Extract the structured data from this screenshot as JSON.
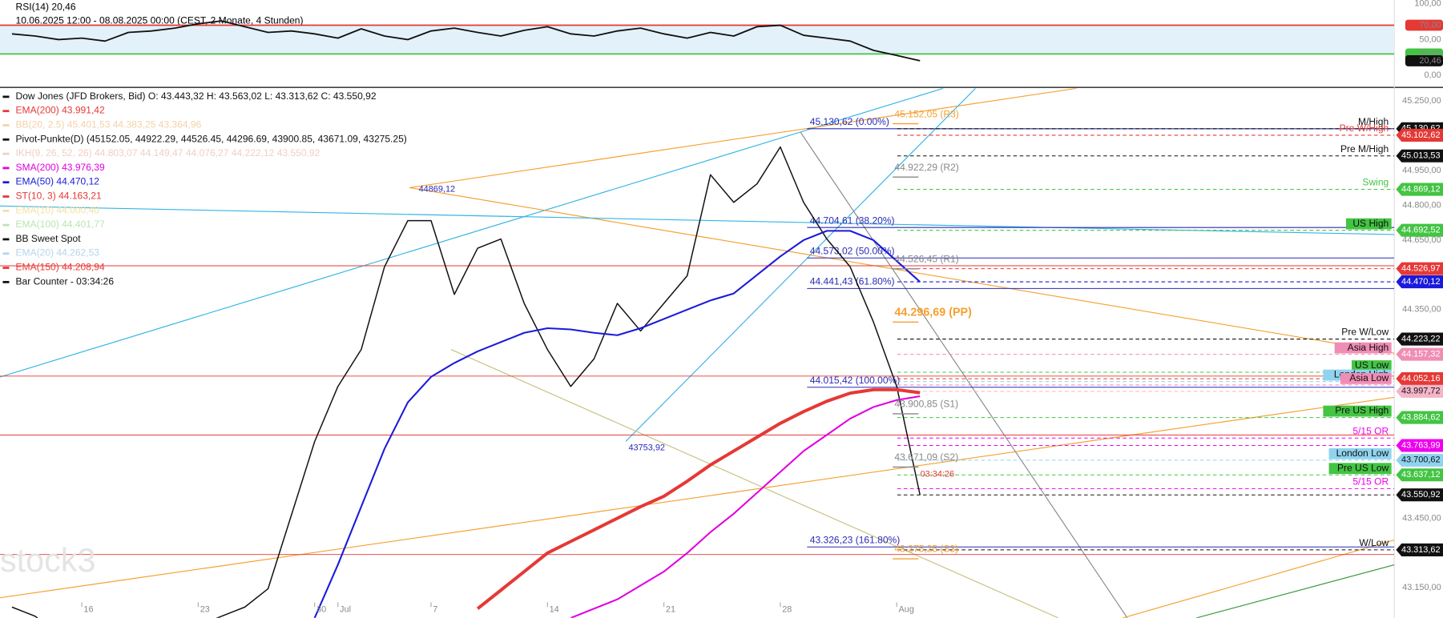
{
  "chart_data": [
    {
      "type": "line",
      "title": "RSI(14)  20,46",
      "subtitle": "10.06.2025 12:00 - 08.08.2025 00:00  (CEST, 2 Monate, 4 Stunden)",
      "ylim": [
        0,
        100
      ],
      "yticks": [
        {
          "value": 100,
          "label": "100,00"
        },
        {
          "value": 70,
          "label": "70,00"
        },
        {
          "value": 50,
          "label": "50,00"
        },
        {
          "value": 30,
          "label": "30,00"
        },
        {
          "value": 0,
          "label": "0,00"
        }
      ],
      "bands": [
        {
          "value": 70,
          "color": "#e53935"
        },
        {
          "value": 30,
          "color": "#43c443"
        }
      ],
      "last": {
        "value": 20.46,
        "label": "20,46"
      },
      "series": [
        {
          "color": "#111111",
          "values": [
            58,
            55,
            50,
            52,
            48,
            60,
            62,
            66,
            72,
            76,
            68,
            60,
            62,
            58,
            52,
            65,
            55,
            50,
            62,
            66,
            60,
            55,
            63,
            68,
            58,
            55,
            62,
            66,
            58,
            52,
            60,
            55,
            68,
            70,
            56,
            52,
            48,
            35,
            28,
            20.46
          ]
        }
      ]
    },
    {
      "type": "line",
      "legend": [
        {
          "text": "Dow Jones (JFD Brokers, Bid)  O: 43.443,32  H: 43.563,02  L: 43.313,62  C: 43.550,92",
          "color": "#111111"
        },
        {
          "text": "EMA(200)  43.991,42",
          "color": "#e53935"
        },
        {
          "text": "BB(20, 2.5)  45.401,53  44.383,25  43.364,96",
          "color": "#f3d2a8"
        },
        {
          "text": "Pivot-Punkte(D)  (45152.05, 44922.29, 44526.45, 44296.69, 43900.85, 43671.09, 43275.25)",
          "color": "#111111"
        },
        {
          "text": "IKH(9, 26, 52, 26)  44.803,07  44.149,47  44.076,27  44.222,12  43.550,92",
          "color": "#f1cfc3"
        },
        {
          "text": "SMA(200)  43.976,39",
          "color": "#e000e0"
        },
        {
          "text": "EMA(50)  44.470,12",
          "color": "#1a1adb"
        },
        {
          "text": "ST(10, 3)  44.163,21",
          "color": "#e53935"
        },
        {
          "text": "EMA(10)  44.000,40",
          "color": "#f3e2a0"
        },
        {
          "text": "EMA(100)  44.401,77",
          "color": "#b9e6b0"
        },
        {
          "text": "BB Sweet Spot",
          "color": "#111111"
        },
        {
          "text": "EMA(20)  44.262,53",
          "color": "#b5d5ec"
        },
        {
          "text": "EMA(150)  44.208,94",
          "color": "#e53935"
        },
        {
          "text": "Bar Counter - 03:34:26",
          "color": "#111111"
        }
      ],
      "categories": [
        null,
        null,
        null,
        "16",
        null,
        null,
        null,
        null,
        "23",
        null,
        null,
        null,
        null,
        "30",
        "Jul",
        null,
        null,
        null,
        "7",
        null,
        null,
        null,
        null,
        "14",
        null,
        null,
        null,
        null,
        "21",
        null,
        null,
        null,
        null,
        "28",
        null,
        null,
        null,
        null,
        "Aug",
        null
      ],
      "ylim": [
        43020,
        45305
      ],
      "yticks": [
        {
          "value": 45250,
          "label": "45.250,00"
        },
        {
          "value": 44950,
          "label": "44.950,00"
        },
        {
          "value": 44800,
          "label": "44.800,00"
        },
        {
          "value": 44650,
          "label": "44.650,00"
        },
        {
          "value": 44350,
          "label": "44.350,00"
        },
        {
          "value": 43450,
          "label": "43.450,00"
        },
        {
          "value": 43150,
          "label": "43.150,00"
        }
      ],
      "series": [
        {
          "color": "#111111",
          "values": [
            43067,
            43027,
            42947,
            42947,
            42907,
            42907,
            42907,
            42947,
            42987,
            43027,
            43067,
            43146,
            43463,
            43781,
            44019,
            44178,
            44535,
            44734,
            44734,
            44416,
            44615,
            44655,
            44377,
            44178,
            44019,
            44138,
            44377,
            44258,
            44377,
            44496,
            44932,
            44813,
            44893,
            45052,
            44813,
            44655,
            44535,
            44297,
            44019,
            43550.92
          ]
        },
        {
          "color": "#1a1adb",
          "values": [
            null,
            null,
            null,
            null,
            null,
            null,
            null,
            null,
            null,
            null,
            null,
            null,
            null,
            43020,
            43250,
            43500,
            43750,
            43950,
            44060,
            44120,
            44170,
            44210,
            44250,
            44270,
            44265,
            44250,
            44240,
            44270,
            44310,
            44350,
            44390,
            44420,
            44500,
            44580,
            44650,
            44690,
            44690,
            44650,
            44560,
            44470.12
          ]
        },
        {
          "color": "#e53935",
          "values": [
            null,
            null,
            null,
            null,
            null,
            null,
            null,
            null,
            null,
            null,
            null,
            null,
            null,
            null,
            null,
            null,
            null,
            null,
            null,
            null,
            43060,
            43140,
            43220,
            43300,
            43350,
            43400,
            43450,
            43500,
            43545,
            43610,
            43680,
            43740,
            43800,
            43860,
            43910,
            43955,
            43990,
            44005,
            44005,
            43991.42
          ]
        },
        {
          "color": "#e000e0",
          "values": [
            null,
            null,
            null,
            null,
            null,
            null,
            null,
            null,
            null,
            null,
            null,
            null,
            null,
            null,
            null,
            null,
            null,
            null,
            null,
            null,
            null,
            null,
            null,
            null,
            43020,
            43060,
            43100,
            43160,
            43220,
            43300,
            43390,
            43470,
            43560,
            43650,
            43740,
            43810,
            43880,
            43930,
            43960,
            43976.39
          ]
        }
      ],
      "levels": [
        {
          "name": "M/High",
          "value": 45130.62,
          "label": "45.130,62",
          "color": "#111111"
        },
        {
          "name": "Pre W/High",
          "value": 45102.62,
          "label": "45.102,62",
          "color": "#e53935"
        },
        {
          "name": "Pre M/High",
          "value": 45013.53,
          "label": "45.013,53",
          "color": "#111111"
        },
        {
          "name": "Swing",
          "value": 44869.12,
          "label": "44.869,12",
          "color": "#43c443"
        },
        {
          "name": "US High",
          "value": 44692.52,
          "label": "44.692,52",
          "color": "#43c443",
          "box": true
        },
        {
          "value": 44526.97,
          "label": "44.526,97",
          "color": "#e53935"
        },
        {
          "value": 44470.12,
          "label": "44.470,12",
          "color": "#1a1adb"
        },
        {
          "name": "Pre W/Low",
          "value": 44223.22,
          "label": "44.223,22",
          "color": "#111111"
        },
        {
          "name": "Asia High",
          "value": 44157.32,
          "label": "44.157,32",
          "color": "#f08db5",
          "box": true
        },
        {
          "name": "US Low",
          "value": 44080,
          "color": "#43c443",
          "box": true
        },
        {
          "value": 44052.16,
          "label": "44.052,16",
          "color": "#e53935"
        },
        {
          "name": "London High",
          "value": 44040,
          "color": "#8fd3ef",
          "box": true
        },
        {
          "name": "Asia Low",
          "value": 44025,
          "color": "#f08db5",
          "box": true
        },
        {
          "value": 43997.72,
          "label": "43.997,72",
          "color": "#f5b5c8"
        },
        {
          "name": "Pre US High",
          "value": 43884.62,
          "label": "43.884,62",
          "color": "#43c443",
          "box": true
        },
        {
          "name": "5/15 OR",
          "value": 43796,
          "color": "#ee00ee"
        },
        {
          "value": 43763.99,
          "label": "43.763,99",
          "color": "#ee00ee"
        },
        {
          "name": "London Low",
          "value": 43700.62,
          "label": "43.700,62",
          "color": "#8fd3ef",
          "box": true
        },
        {
          "name": "Pre US Low",
          "value": 43637.12,
          "label": "43.637,12",
          "color": "#43c443",
          "box": true
        },
        {
          "name": "5/15 OR",
          "value": 43578,
          "color": "#ee00ee"
        },
        {
          "value": 43550.92,
          "label": "43.550,92",
          "color": "#111111"
        },
        {
          "name": "W/Low",
          "value": 43313.62,
          "label": "43.313,62",
          "color": "#111111"
        }
      ],
      "pivots": [
        {
          "value": 45152.05,
          "label": "45.152,05 (R3)",
          "color": "#f5a030"
        },
        {
          "value": 44922.29,
          "label": "44.922,29 (R2)",
          "color": "#888888"
        },
        {
          "value": 44526.45,
          "label": "44.526,45 (R1)",
          "color": "#888888"
        },
        {
          "value": 44296.69,
          "label": "44.296,69 (PP)",
          "color": "#f5a030"
        },
        {
          "value": 43900.85,
          "label": "43.900,85 (S1)",
          "color": "#888888"
        },
        {
          "value": 43671.09,
          "label": "43.671,09 (S2)",
          "color": "#888888"
        },
        {
          "value": 43275.25,
          "label": "43.275,25 (S3)",
          "color": "#f5a030"
        }
      ],
      "fibs": [
        {
          "value": 45130.62,
          "label": "45.130,62 (0.00%)"
        },
        {
          "value": 44704.61,
          "label": "44.704,61 (38.20%)"
        },
        {
          "value": 44573.02,
          "label": "44.573,02 (50.00%)"
        },
        {
          "value": 44441.43,
          "label": "44.441,43 (61.80%)"
        },
        {
          "value": 44015.42,
          "label": "44.015,42 (100.00%)"
        },
        {
          "value": 43326.23,
          "label": "43.326,23 (161.80%)"
        }
      ],
      "annotations": [
        {
          "text": "44869,12",
          "value": 44869.12
        },
        {
          "text": "43753,92",
          "value": 43753.92
        }
      ],
      "countdown": "03:34:26",
      "watermark": "stock3"
    }
  ]
}
